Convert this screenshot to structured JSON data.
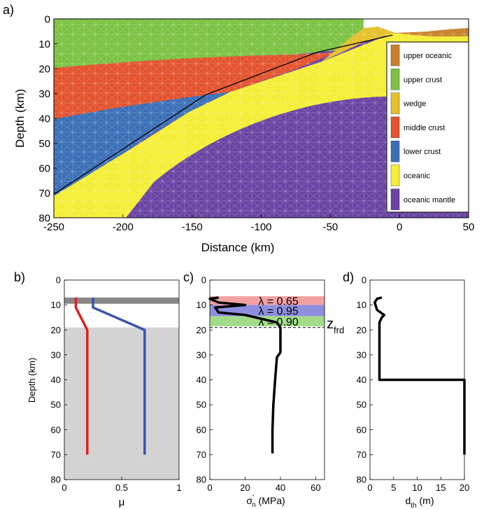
{
  "panels": {
    "a": {
      "label": "a)",
      "ylabel": "Depth (km)",
      "xlabel": "Distance (km)"
    },
    "b": {
      "label": "b)",
      "ylabel": "Depth (km)",
      "xlabel": "μ"
    },
    "c": {
      "label": "c)",
      "xlabel_main": "σ",
      "xlabel_sup": "'",
      "xlabel_sub": "n",
      "xlabel_unit": " (MPa)",
      "zlabel_main": "z",
      "zlabel_sub": "frd"
    },
    "d": {
      "label": "d)",
      "xlabel_main": "d",
      "xlabel_sub": "th",
      "xlabel_unit": " (m)"
    }
  },
  "chart_data": [
    {
      "type": "area",
      "panel": "a",
      "xlabel": "Distance (km)",
      "ylabel": "Depth (km)",
      "xlim": [
        -250,
        50
      ],
      "ylim": [
        0,
        80
      ],
      "y_inverted": true,
      "xticks": [
        "-250",
        "-200",
        "-150",
        "-100",
        "-50",
        "0",
        "50"
      ],
      "yticks": [
        "0",
        "10",
        "20",
        "30",
        "40",
        "50",
        "60",
        "70",
        "80"
      ],
      "legend": {
        "placement": "right",
        "entries": [
          {
            "name": "upper oceanic",
            "color": "#c8812a"
          },
          {
            "name": "upper crust",
            "color": "#7cc243"
          },
          {
            "name": "wedge",
            "color": "#e5c02a"
          },
          {
            "name": "middle crust",
            "color": "#e3532d"
          },
          {
            "name": "lower crust",
            "color": "#3b6fb6"
          },
          {
            "name": "oceanic",
            "color": "#f4ee36"
          },
          {
            "name": "oceanic mantle",
            "color": "#6a44a3"
          }
        ]
      },
      "fault_trace": [
        [
          -250,
          70.5
        ],
        [
          -140,
          30.5
        ],
        [
          -60,
          13.5
        ],
        [
          -5,
          6.5
        ]
      ]
    },
    {
      "type": "line",
      "panel": "b",
      "xlabel": "μ",
      "ylabel": "Depth (km)",
      "xlim": [
        0,
        1
      ],
      "ylim": [
        0,
        80
      ],
      "y_inverted": true,
      "xticks": [
        "0",
        "0.5",
        "1"
      ],
      "yticks": [
        "0",
        "10",
        "20",
        "30",
        "40",
        "50",
        "60",
        "70",
        "80"
      ],
      "shaded": [
        {
          "from": 7,
          "to": 9.5,
          "color": "#888888"
        },
        {
          "from": 19,
          "to": 80,
          "color": "#d3d3d3"
        }
      ],
      "series": [
        {
          "color": "#e02020",
          "points": [
            [
              0.1,
              7
            ],
            [
              0.1,
              11
            ],
            [
              0.2,
              20
            ],
            [
              0.2,
              70
            ]
          ]
        },
        {
          "color": "#3a52b0",
          "points": [
            [
              0.25,
              7
            ],
            [
              0.25,
              11
            ],
            [
              0.7,
              20
            ],
            [
              0.7,
              70
            ]
          ]
        }
      ]
    },
    {
      "type": "line",
      "panel": "c",
      "xlabel": "σ'n (MPa)",
      "xlim": [
        0,
        65
      ],
      "ylim": [
        0,
        80
      ],
      "y_inverted": true,
      "xticks": [
        "0",
        "20",
        "40",
        "60"
      ],
      "yticks": [
        "0",
        "10",
        "20",
        "30",
        "40",
        "50",
        "60",
        "70",
        "80"
      ],
      "bands": [
        {
          "from": 6.5,
          "to": 10,
          "color": "#f2a0a0",
          "label": "λ = 0.65"
        },
        {
          "from": 10,
          "to": 14.5,
          "color": "#8f8fe0",
          "label": "λ = 0.95"
        },
        {
          "from": 14.5,
          "to": 18.5,
          "color": "#a2dc8a",
          "label": "λ = 0.90"
        }
      ],
      "dashed_line_depth": 19,
      "series": [
        {
          "color": "#000000",
          "points": [
            [
              5,
              7
            ],
            [
              0,
              7.5
            ],
            [
              5,
              9
            ],
            [
              20,
              10
            ],
            [
              3,
              11
            ],
            [
              5,
              13
            ],
            [
              20,
              14
            ],
            [
              38,
              17
            ],
            [
              40,
              19
            ],
            [
              40,
              29
            ],
            [
              38,
              31
            ],
            [
              37,
              40
            ],
            [
              36,
              50
            ],
            [
              35.5,
              60
            ],
            [
              35.5,
              69.5
            ]
          ]
        }
      ]
    },
    {
      "type": "line",
      "panel": "d",
      "xlabel": "dth (m)",
      "xlim": [
        0,
        20
      ],
      "ylim": [
        0,
        80
      ],
      "y_inverted": true,
      "xticks": [
        "0",
        "5",
        "10",
        "15",
        "20"
      ],
      "yticks": [
        "0",
        "10",
        "20",
        "30",
        "40",
        "50",
        "60",
        "70",
        "80"
      ],
      "series": [
        {
          "color": "#000000",
          "points": [
            [
              2.5,
              7
            ],
            [
              1.5,
              7.5
            ],
            [
              1,
              9
            ],
            [
              1.5,
              12
            ],
            [
              3,
              14
            ],
            [
              2.5,
              15
            ],
            [
              2,
              17
            ],
            [
              2,
              30
            ],
            [
              2,
              40
            ],
            [
              20,
              40
            ],
            [
              20,
              70
            ]
          ]
        }
      ]
    }
  ]
}
